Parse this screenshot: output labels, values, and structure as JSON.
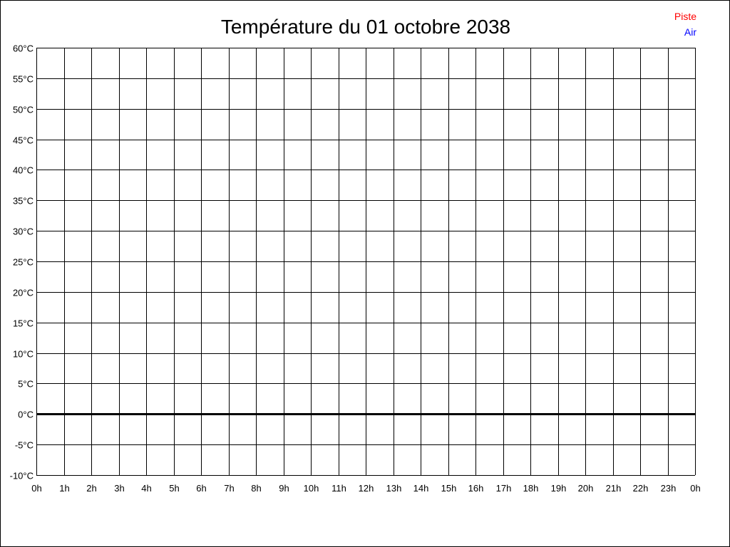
{
  "chart_data": {
    "type": "line",
    "title": "Température du 01 octobre 2038",
    "xlabel": "",
    "ylabel": "",
    "x_tick_labels": [
      "0h",
      "1h",
      "2h",
      "3h",
      "4h",
      "5h",
      "6h",
      "7h",
      "8h",
      "9h",
      "10h",
      "11h",
      "12h",
      "13h",
      "14h",
      "15h",
      "16h",
      "17h",
      "18h",
      "19h",
      "20h",
      "21h",
      "22h",
      "23h",
      "0h"
    ],
    "y_tick_labels": [
      "60°C",
      "55°C",
      "50°C",
      "45°C",
      "40°C",
      "35°C",
      "30°C",
      "25°C",
      "20°C",
      "15°C",
      "10°C",
      "5°C",
      "0°C",
      "-5°C",
      "-10°C"
    ],
    "ylim": [
      -10,
      60
    ],
    "xlim": [
      0,
      24
    ],
    "grid": true,
    "legend_placement": "top-right",
    "series": [
      {
        "name": "Piste",
        "color": "#ff0000",
        "values": []
      },
      {
        "name": "Air",
        "color": "#0000ff",
        "values": []
      }
    ]
  }
}
